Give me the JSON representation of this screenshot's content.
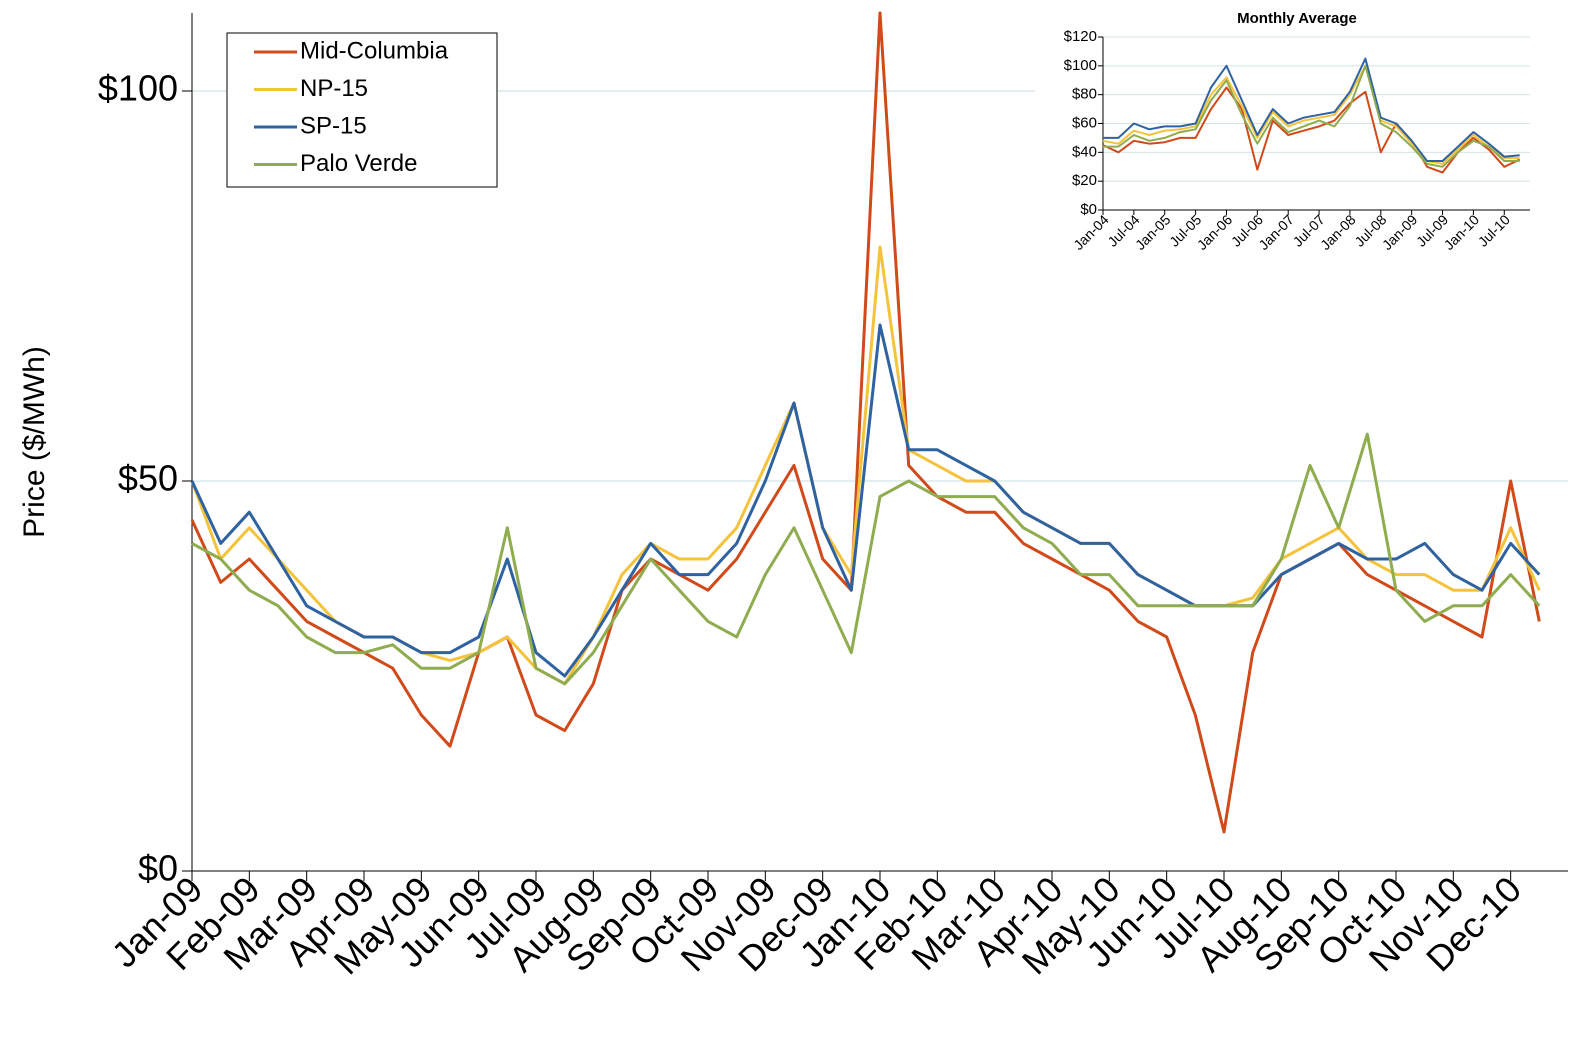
{
  "chart_data": [
    {
      "type": "line",
      "y_label": "Price ($/MWh)",
      "legend": "upper left",
      "grid": true,
      "categories": [
        "Jan-09",
        null,
        "Feb-09",
        null,
        "Mar-09",
        null,
        "Apr-09",
        null,
        "May-09",
        null,
        "Jun-09",
        null,
        "Jul-09",
        null,
        "Aug-09",
        null,
        "Sep-09",
        null,
        "Oct-09",
        null,
        "Nov-09",
        null,
        "Dec-09",
        null,
        "Jan-10",
        null,
        "Feb-10",
        null,
        "Mar-10",
        null,
        "Apr-10",
        null,
        "May-10",
        null,
        "Jun-10",
        null,
        "Jul-10",
        null,
        "Aug-10",
        null,
        "Sep-10",
        null,
        "Oct-10",
        null,
        "Nov-10",
        null,
        "Dec-10",
        null
      ],
      "ylim": [
        0,
        110
      ],
      "yticks": [
        {
          "value": 0,
          "label": "$0"
        },
        {
          "value": 50,
          "label": "$50"
        },
        {
          "value": 100,
          "label": "$100"
        }
      ],
      "series": [
        {
          "name": "Mid-Columbia",
          "color": "#d04a1a",
          "values": [
            45,
            37,
            40,
            36,
            32,
            30,
            28,
            26,
            20,
            16,
            28,
            30,
            20,
            18,
            24,
            36,
            40,
            38,
            36,
            40,
            46,
            52,
            40,
            36,
            110,
            52,
            48,
            46,
            46,
            42,
            40,
            38,
            36,
            32,
            30,
            20,
            5,
            28,
            38,
            40,
            42,
            38,
            36,
            34,
            32,
            30,
            50,
            32
          ]
        },
        {
          "name": "NP-15",
          "color": "#f5c33b",
          "values": [
            50,
            40,
            44,
            40,
            36,
            32,
            30,
            30,
            28,
            27,
            28,
            30,
            26,
            24,
            30,
            38,
            42,
            40,
            40,
            44,
            52,
            60,
            44,
            38,
            80,
            54,
            52,
            50,
            50,
            46,
            44,
            42,
            42,
            38,
            36,
            34,
            34,
            35,
            40,
            42,
            44,
            40,
            38,
            38,
            36,
            36,
            44,
            36
          ]
        },
        {
          "name": "SP-15",
          "color": "#2e62a0",
          "values": [
            50,
            42,
            46,
            40,
            34,
            32,
            30,
            30,
            28,
            28,
            30,
            40,
            28,
            25,
            30,
            36,
            42,
            38,
            38,
            42,
            50,
            60,
            44,
            36,
            70,
            54,
            54,
            52,
            50,
            46,
            44,
            42,
            42,
            38,
            36,
            34,
            34,
            34,
            38,
            40,
            42,
            40,
            40,
            42,
            38,
            36,
            42,
            38
          ]
        },
        {
          "name": "Palo Verde",
          "color": "#8fac4f",
          "values": [
            42,
            40,
            36,
            34,
            30,
            28,
            28,
            29,
            26,
            26,
            28,
            44,
            26,
            24,
            28,
            34,
            40,
            36,
            32,
            30,
            38,
            44,
            36,
            28,
            48,
            50,
            48,
            48,
            48,
            44,
            42,
            38,
            38,
            34,
            34,
            34,
            34,
            34,
            40,
            52,
            44,
            56,
            36,
            32,
            34,
            34,
            38,
            34
          ]
        }
      ]
    },
    {
      "type": "line",
      "title": "Monthly Average",
      "grid": true,
      "categories": [
        "Jan-04",
        null,
        "Jul-04",
        null,
        "Jan-05",
        null,
        "Jul-05",
        null,
        "Jan-06",
        null,
        "Jul-06",
        null,
        "Jan-07",
        null,
        "Jul-07",
        null,
        "Jan-08",
        null,
        "Jul-08",
        null,
        "Jan-09",
        null,
        "Jul-09",
        null,
        "Jan-10",
        null,
        "Jul-10",
        null
      ],
      "ylim": [
        0,
        120
      ],
      "yticks": [
        {
          "value": 0,
          "label": "$0"
        },
        {
          "value": 20,
          "label": "$20"
        },
        {
          "value": 40,
          "label": "$40"
        },
        {
          "value": 60,
          "label": "$60"
        },
        {
          "value": 80,
          "label": "$80"
        },
        {
          "value": 100,
          "label": "$100"
        },
        {
          "value": 120,
          "label": "$120"
        }
      ],
      "series": [
        {
          "color": "#d04a1a",
          "values": [
            45,
            40,
            48,
            46,
            47,
            50,
            50,
            70,
            85,
            70,
            28,
            62,
            52,
            55,
            58,
            62,
            74,
            82,
            40,
            60,
            48,
            30,
            26,
            40,
            50,
            42,
            30,
            35
          ]
        },
        {
          "color": "#f5c33b",
          "values": [
            48,
            46,
            55,
            52,
            55,
            56,
            58,
            80,
            92,
            72,
            50,
            68,
            58,
            62,
            64,
            66,
            80,
            100,
            62,
            58,
            46,
            34,
            32,
            42,
            52,
            44,
            36,
            36
          ]
        },
        {
          "color": "#2e62a0",
          "values": [
            50,
            50,
            60,
            56,
            58,
            58,
            60,
            85,
            100,
            76,
            52,
            70,
            60,
            64,
            66,
            68,
            82,
            105,
            64,
            60,
            48,
            34,
            34,
            44,
            54,
            46,
            37,
            38
          ]
        },
        {
          "color": "#8fac4f",
          "values": [
            44,
            44,
            52,
            48,
            50,
            54,
            56,
            76,
            90,
            66,
            46,
            64,
            54,
            58,
            62,
            58,
            72,
            100,
            60,
            54,
            44,
            32,
            30,
            40,
            48,
            44,
            34,
            34
          ]
        }
      ]
    }
  ]
}
